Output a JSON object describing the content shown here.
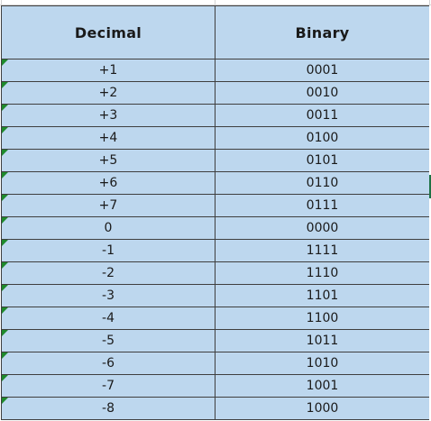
{
  "table": {
    "headers": {
      "decimal": "Decimal",
      "binary": "Binary"
    },
    "rows": [
      {
        "decimal": "+1",
        "binary": "0001"
      },
      {
        "decimal": "+2",
        "binary": "0010"
      },
      {
        "decimal": "+3",
        "binary": "0011"
      },
      {
        "decimal": "+4",
        "binary": "0100"
      },
      {
        "decimal": "+5",
        "binary": "0101"
      },
      {
        "decimal": "+6",
        "binary": "0110"
      },
      {
        "decimal": "+7",
        "binary": "0111"
      },
      {
        "decimal": "0",
        "binary": "0000"
      },
      {
        "decimal": "-1",
        "binary": "1111"
      },
      {
        "decimal": "-2",
        "binary": "1110"
      },
      {
        "decimal": "-3",
        "binary": "1101"
      },
      {
        "decimal": "-4",
        "binary": "1100"
      },
      {
        "decimal": "-5",
        "binary": "1011"
      },
      {
        "decimal": "-6",
        "binary": "1010"
      },
      {
        "decimal": "-7",
        "binary": "1001"
      },
      {
        "decimal": "-8",
        "binary": "1000"
      }
    ]
  },
  "colors": {
    "cell_fill": "#bdd7ee",
    "border": "#3f3f3f",
    "error_indicator": "#1f8a2c",
    "selection": "#1e7145"
  },
  "icons": {
    "row_marker": "number-stored-as-text-indicator-icon"
  }
}
